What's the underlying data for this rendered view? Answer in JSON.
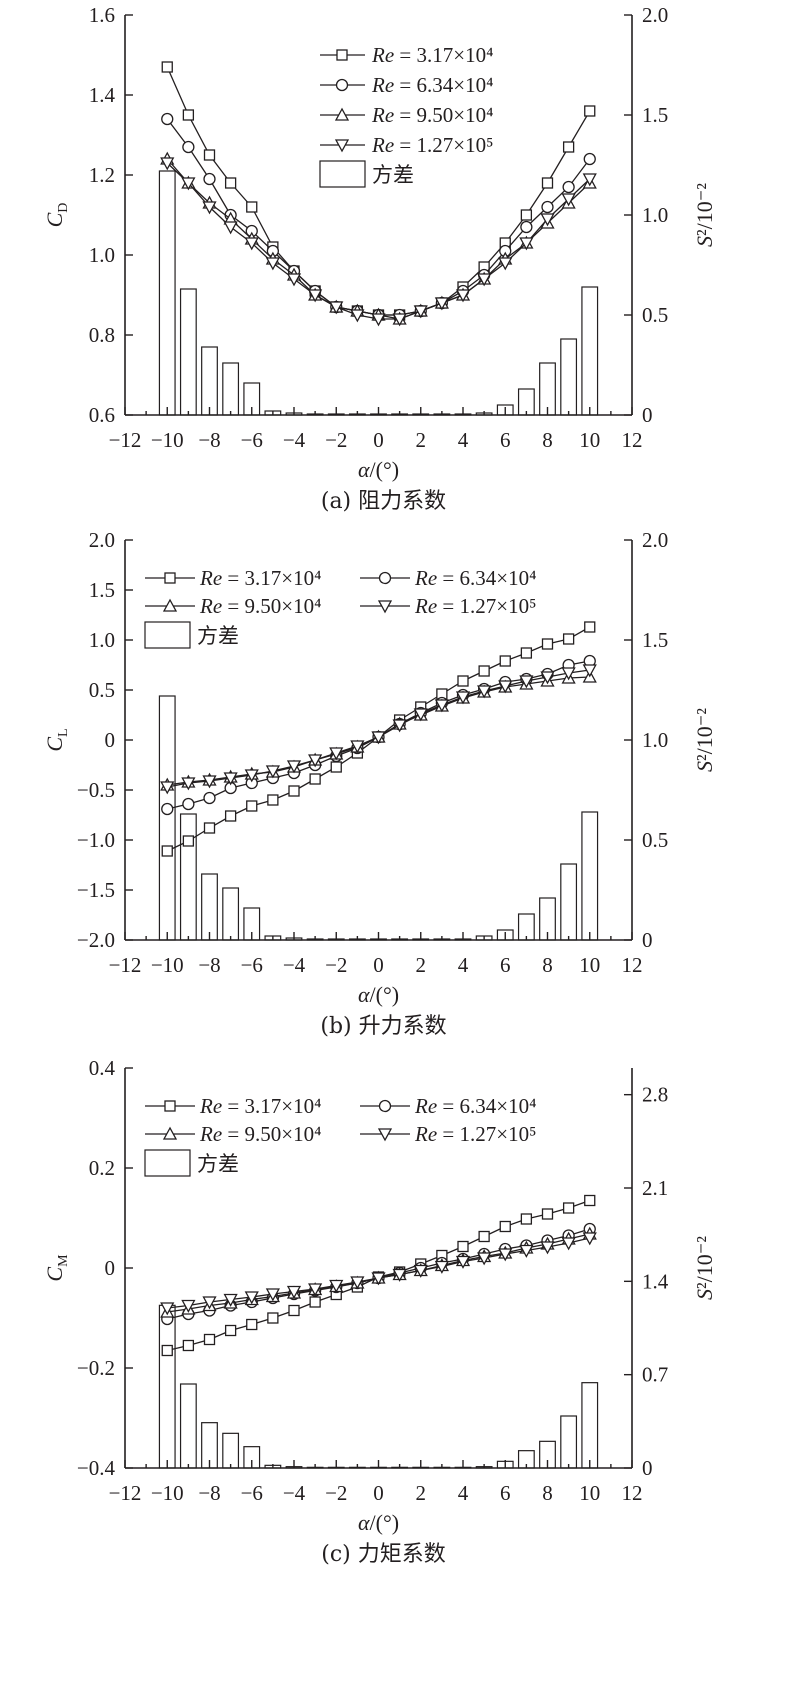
{
  "chart_data": [
    {
      "type": "line",
      "caption": "(a) 阻力系数",
      "xlabel": "α/(°)",
      "ylabel_left": "C_D",
      "ylabel_right": "S²/10⁻²",
      "xlim": [
        -12,
        12
      ],
      "xticks": [
        -12,
        -10,
        -8,
        -6,
        -4,
        -2,
        0,
        2,
        4,
        6,
        8,
        10,
        12
      ],
      "ylim_left": [
        0.6,
        1.6
      ],
      "yticks_left": [
        0.6,
        0.8,
        1.0,
        1.2,
        1.4,
        1.6
      ],
      "ytick_labels_left": [
        "0.6",
        "0.8",
        "1.0",
        "1.2",
        "1.4",
        "1.6"
      ],
      "ylim_right": [
        0,
        2.0
      ],
      "yticks_right": [
        0,
        0.5,
        1.0,
        1.5,
        2.0
      ],
      "ytick_labels_right": [
        "0",
        "0.5",
        "1.0",
        "1.5",
        "2.0"
      ],
      "legend_position": "top-center",
      "legend_layout": "stacked",
      "x": [
        -10,
        -9,
        -8,
        -7,
        -6,
        -5,
        -4,
        -3,
        -2,
        -1,
        0,
        1,
        2,
        3,
        4,
        5,
        6,
        7,
        8,
        9,
        10
      ],
      "series": [
        {
          "name": "Re = 3.17×10⁴",
          "marker": "square",
          "values": [
            1.47,
            1.35,
            1.25,
            1.18,
            1.12,
            1.02,
            0.96,
            0.91,
            0.87,
            0.86,
            0.85,
            0.85,
            0.86,
            0.88,
            0.92,
            0.97,
            1.03,
            1.1,
            1.18,
            1.27,
            1.36
          ]
        },
        {
          "name": "Re = 6.34×10⁴",
          "marker": "circle",
          "values": [
            1.34,
            1.27,
            1.19,
            1.1,
            1.06,
            1.01,
            0.96,
            0.91,
            0.87,
            0.86,
            0.85,
            0.85,
            0.86,
            0.88,
            0.91,
            0.95,
            1.01,
            1.07,
            1.12,
            1.17,
            1.24
          ]
        },
        {
          "name": "Re = 9.50×10⁴",
          "marker": "triangle-up",
          "values": [
            1.24,
            1.18,
            1.13,
            1.09,
            1.04,
            0.99,
            0.95,
            0.9,
            0.87,
            0.86,
            0.85,
            0.84,
            0.86,
            0.88,
            0.9,
            0.94,
            0.99,
            1.03,
            1.08,
            1.13,
            1.18
          ]
        },
        {
          "name": "Re = 1.27×10⁵",
          "marker": "triangle-down",
          "values": [
            1.23,
            1.18,
            1.12,
            1.07,
            1.03,
            0.98,
            0.94,
            0.9,
            0.87,
            0.85,
            0.84,
            0.84,
            0.86,
            0.88,
            0.9,
            0.94,
            0.98,
            1.03,
            1.09,
            1.14,
            1.19
          ]
        }
      ],
      "bars": {
        "name": "方差",
        "values": [
          1.22,
          0.63,
          0.34,
          0.26,
          0.16,
          0.02,
          0.01,
          0.005,
          0.005,
          0.005,
          0.005,
          0.005,
          0.005,
          0.005,
          0.005,
          0.01,
          0.05,
          0.13,
          0.26,
          0.38,
          0.64
        ]
      }
    },
    {
      "type": "line",
      "caption": "(b) 升力系数",
      "xlabel": "α/(°)",
      "ylabel_left": "C_L",
      "ylabel_right": "S²/10⁻²",
      "xlim": [
        -12,
        12
      ],
      "xticks": [
        -12,
        -10,
        -8,
        -6,
        -4,
        -2,
        0,
        2,
        4,
        6,
        8,
        10,
        12
      ],
      "ylim_left": [
        -2.0,
        2.0
      ],
      "yticks_left": [
        -2.0,
        -1.5,
        -1.0,
        -0.5,
        0,
        0.5,
        1.0,
        1.5,
        2.0
      ],
      "ytick_labels_left": [
        "−2.0",
        "−1.5",
        "−1.0",
        "−0.5",
        "0",
        "0.5",
        "1.0",
        "1.5",
        "2.0"
      ],
      "ylim_right": [
        0,
        2.0
      ],
      "yticks_right": [
        0,
        0.5,
        1.0,
        1.5,
        2.0
      ],
      "ytick_labels_right": [
        "0",
        "0.5",
        "1.0",
        "1.5",
        "2.0"
      ],
      "legend_position": "top-left",
      "legend_layout": "two-column",
      "x": [
        -10,
        -9,
        -8,
        -7,
        -6,
        -5,
        -4,
        -3,
        -2,
        -1,
        0,
        1,
        2,
        3,
        4,
        5,
        6,
        7,
        8,
        9,
        10
      ],
      "series": [
        {
          "name": "Re = 3.17×10⁴",
          "marker": "square",
          "values": [
            -1.11,
            -1.01,
            -0.88,
            -0.76,
            -0.66,
            -0.6,
            -0.51,
            -0.39,
            -0.27,
            -0.13,
            0.03,
            0.2,
            0.33,
            0.46,
            0.59,
            0.69,
            0.79,
            0.87,
            0.96,
            1.01,
            1.13
          ]
        },
        {
          "name": "Re = 6.34×10⁴",
          "marker": "circle",
          "values": [
            -0.69,
            -0.64,
            -0.58,
            -0.48,
            -0.43,
            -0.38,
            -0.33,
            -0.25,
            -0.16,
            -0.08,
            0.03,
            0.16,
            0.27,
            0.37,
            0.45,
            0.51,
            0.58,
            0.61,
            0.66,
            0.75,
            0.79
          ]
        },
        {
          "name": "Re = 9.50×10⁴",
          "marker": "triangle-up",
          "values": [
            -0.45,
            -0.42,
            -0.4,
            -0.37,
            -0.34,
            -0.32,
            -0.27,
            -0.2,
            -0.14,
            -0.07,
            0.03,
            0.16,
            0.25,
            0.34,
            0.42,
            0.48,
            0.53,
            0.56,
            0.59,
            0.62,
            0.63
          ]
        },
        {
          "name": "Re = 1.27×10⁵",
          "marker": "triangle-down",
          "values": [
            -0.47,
            -0.43,
            -0.41,
            -0.38,
            -0.35,
            -0.31,
            -0.26,
            -0.2,
            -0.13,
            -0.06,
            0.03,
            0.15,
            0.26,
            0.35,
            0.43,
            0.49,
            0.54,
            0.59,
            0.63,
            0.67,
            0.7
          ]
        }
      ],
      "bars": {
        "name": "方差",
        "values": [
          1.22,
          0.63,
          0.33,
          0.26,
          0.16,
          0.02,
          0.01,
          0.005,
          0.005,
          0.005,
          0.005,
          0.005,
          0.005,
          0.005,
          0.005,
          0.02,
          0.05,
          0.13,
          0.21,
          0.38,
          0.64
        ]
      }
    },
    {
      "type": "line",
      "caption": "(c) 力矩系数",
      "xlabel": "α/(°)",
      "ylabel_left": "C_M",
      "ylabel_right": "S²/10⁻²",
      "xlim": [
        -12,
        12
      ],
      "xticks": [
        -12,
        -10,
        -8,
        -6,
        -4,
        -2,
        0,
        2,
        4,
        6,
        8,
        10,
        12
      ],
      "ylim_left": [
        -0.4,
        0.4
      ],
      "yticks_left": [
        -0.4,
        -0.2,
        0,
        0.2,
        0.4
      ],
      "ytick_labels_left": [
        "−0.4",
        "−0.2",
        "0",
        "0.2",
        "0.4"
      ],
      "ylim_right": [
        0,
        3.0
      ],
      "yticks_right": [
        0,
        0.7,
        1.4,
        2.1,
        2.8
      ],
      "ytick_labels_right": [
        "0",
        "0.7",
        "1.4",
        "2.1",
        "2.8"
      ],
      "legend_position": "top-left",
      "legend_layout": "two-column",
      "x": [
        -10,
        -9,
        -8,
        -7,
        -6,
        -5,
        -4,
        -3,
        -2,
        -1,
        0,
        1,
        2,
        3,
        4,
        5,
        6,
        7,
        8,
        9,
        10
      ],
      "series": [
        {
          "name": "Re = 3.17×10⁴",
          "marker": "square",
          "values": [
            -0.165,
            -0.155,
            -0.143,
            -0.125,
            -0.113,
            -0.1,
            -0.085,
            -0.068,
            -0.053,
            -0.038,
            -0.018,
            -0.008,
            0.008,
            0.025,
            0.043,
            0.063,
            0.083,
            0.098,
            0.108,
            0.12,
            0.135
          ]
        },
        {
          "name": "Re = 6.34×10⁴",
          "marker": "circle",
          "values": [
            -0.102,
            -0.092,
            -0.085,
            -0.075,
            -0.068,
            -0.06,
            -0.052,
            -0.045,
            -0.038,
            -0.03,
            -0.02,
            -0.01,
            0.0,
            0.01,
            0.018,
            0.028,
            0.038,
            0.045,
            0.055,
            0.065,
            0.078
          ]
        },
        {
          "name": "Re = 9.50×10⁴",
          "marker": "triangle-up",
          "values": [
            -0.088,
            -0.082,
            -0.075,
            -0.07,
            -0.063,
            -0.057,
            -0.05,
            -0.043,
            -0.037,
            -0.03,
            -0.02,
            -0.013,
            -0.005,
            0.005,
            0.015,
            0.023,
            0.03,
            0.04,
            0.048,
            0.058,
            0.068
          ]
        },
        {
          "name": "Re = 1.27×10⁵",
          "marker": "triangle-down",
          "values": [
            -0.08,
            -0.075,
            -0.068,
            -0.063,
            -0.058,
            -0.052,
            -0.047,
            -0.042,
            -0.035,
            -0.028,
            -0.02,
            -0.013,
            -0.005,
            0.003,
            0.013,
            0.02,
            0.028,
            0.035,
            0.042,
            0.05,
            0.06
          ]
        }
      ],
      "bars": {
        "name": "方差",
        "values": [
          1.22,
          0.63,
          0.34,
          0.26,
          0.16,
          0.02,
          0.01,
          0.005,
          0.005,
          0.005,
          0.005,
          0.005,
          0.005,
          0.005,
          0.005,
          0.01,
          0.05,
          0.13,
          0.2,
          0.39,
          0.64
        ]
      }
    }
  ]
}
